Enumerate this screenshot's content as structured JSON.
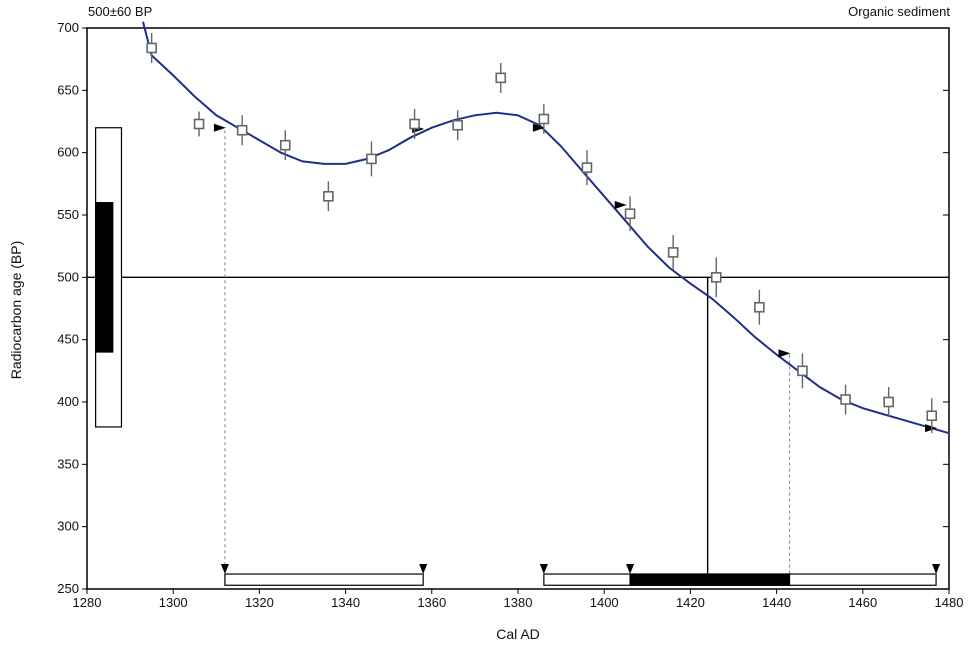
{
  "chart_data": {
    "type": "scatter",
    "header_left": "500±60 BP",
    "header_right": "Organic sediment",
    "xlabel": "Cal AD",
    "ylabel": "Radiocarbon age (BP)",
    "xlim": [
      1280,
      1480
    ],
    "ylim": [
      250,
      700
    ],
    "xticks": [
      1280,
      1300,
      1320,
      1340,
      1360,
      1380,
      1400,
      1420,
      1440,
      1460,
      1480
    ],
    "yticks": [
      250,
      300,
      350,
      400,
      450,
      500,
      550,
      600,
      650,
      700
    ],
    "grid": false,
    "sample_age": 500,
    "sample_sigma": 60,
    "calibration_curve": {
      "x": [
        1293,
        1295,
        1300,
        1305,
        1310,
        1315,
        1320,
        1325,
        1330,
        1335,
        1340,
        1345,
        1350,
        1355,
        1360,
        1365,
        1370,
        1375,
        1380,
        1385,
        1390,
        1395,
        1400,
        1405,
        1410,
        1415,
        1420,
        1425,
        1430,
        1435,
        1440,
        1445,
        1450,
        1455,
        1460,
        1465,
        1470,
        1475,
        1480
      ],
      "y": [
        705,
        678,
        662,
        645,
        630,
        620,
        610,
        600,
        593,
        591,
        591,
        595,
        602,
        612,
        620,
        626,
        630,
        632,
        630,
        622,
        605,
        585,
        565,
        545,
        525,
        508,
        495,
        483,
        468,
        452,
        438,
        425,
        412,
        402,
        395,
        390,
        385,
        380,
        375
      ]
    },
    "data_points": {
      "x": [
        1295,
        1306,
        1316,
        1326,
        1336,
        1346,
        1356,
        1366,
        1376,
        1386,
        1396,
        1406,
        1416,
        1426,
        1436,
        1446,
        1456,
        1466,
        1476
      ],
      "y": [
        684,
        623,
        618,
        606,
        565,
        595,
        623,
        622,
        660,
        627,
        588,
        551,
        520,
        500,
        476,
        425,
        402,
        400,
        389
      ],
      "error": [
        12,
        10,
        12,
        12,
        12,
        14,
        12,
        12,
        12,
        12,
        14,
        14,
        14,
        16,
        14,
        14,
        12,
        12,
        14
      ]
    },
    "age_box_outer": [
      380,
      620
    ],
    "age_box_inner": [
      440,
      560
    ],
    "intercept_lines": [
      1312,
      1424,
      1443
    ],
    "ranges": [
      {
        "from": 1312,
        "to": 1358,
        "filled": false
      },
      {
        "from": 1386,
        "to": 1477,
        "filled": false
      },
      {
        "from": 1406,
        "to": 1443,
        "filled": true
      }
    ],
    "range_markers": [
      1312,
      1358,
      1386,
      1406,
      1477
    ],
    "curve_markers": [
      {
        "x": 1312,
        "y": 620
      },
      {
        "x": 1358,
        "y": 619
      },
      {
        "x": 1386,
        "y": 620
      },
      {
        "x": 1405,
        "y": 558
      },
      {
        "x": 1443,
        "y": 439
      },
      {
        "x": 1477,
        "y": 379
      }
    ],
    "colors": {
      "curve": "#1f2f8a",
      "markers": "#666666",
      "axis": "#000000"
    }
  }
}
